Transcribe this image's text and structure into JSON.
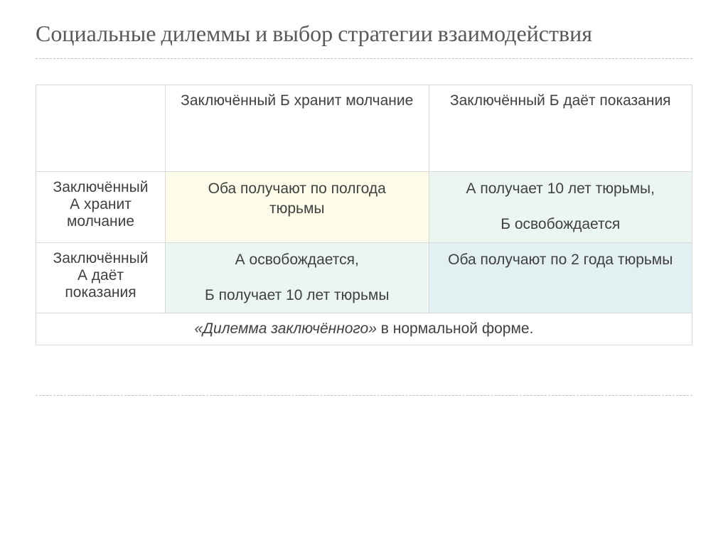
{
  "slide": {
    "title": "Социальные дилеммы и выбор стратегии взаимодействия",
    "title_color": "#595959",
    "title_fontsize": 32,
    "divider_color": "#bfbfbf"
  },
  "table": {
    "border_color": "#d9d9d9",
    "cell_fontsize": 21,
    "text_color": "#404040",
    "columns": {
      "b_silent": "Заключённый Б хранит молчание",
      "b_testify": "Заключённый Б даёт показания"
    },
    "rows": {
      "a_silent": "Заключённый А хранит молчание",
      "a_testify": "Заключённый А даёт показания"
    },
    "cells": {
      "a_silent_b_silent": {
        "lines": [
          "Оба получают по полгода тюрьмы"
        ],
        "bg": "#fdfde9"
      },
      "a_silent_b_testify": {
        "lines": [
          "А получает 10 лет тюрьмы,",
          "Б освобождается"
        ],
        "bg": "#ecf6f0"
      },
      "a_testify_b_silent": {
        "lines": [
          "А освобождается,",
          "Б получает 10 лет тюрьмы"
        ],
        "bg": "#ecf6f0"
      },
      "a_testify_b_testify": {
        "lines": [
          "Оба получают по 2 года тюрьмы"
        ],
        "bg": "#e3f0f1"
      }
    },
    "caption": {
      "italic_part": "«Дилемма заключённого»",
      "rest": " в нормальной форме."
    }
  }
}
